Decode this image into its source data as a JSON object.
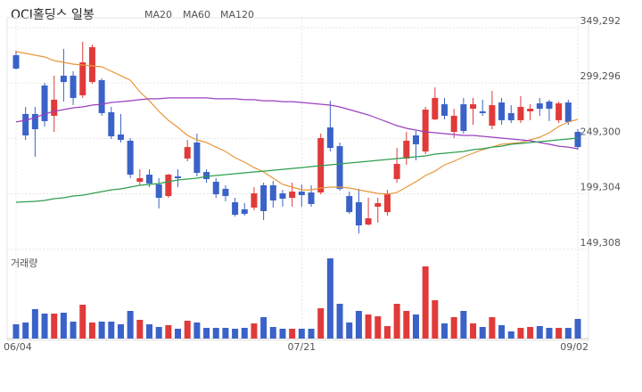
{
  "chart_data": {
    "type": "candlestick",
    "title": "OCI홀딩스 일봉",
    "categories": [
      "06/04",
      null,
      null,
      null,
      null,
      null,
      null,
      null,
      null,
      null,
      null,
      null,
      null,
      null,
      null,
      null,
      null,
      null,
      null,
      null,
      null,
      null,
      null,
      null,
      null,
      null,
      null,
      null,
      null,
      null,
      "07/21",
      null,
      null,
      null,
      null,
      null,
      null,
      null,
      null,
      null,
      null,
      null,
      null,
      null,
      null,
      null,
      null,
      null,
      null,
      null,
      null,
      null,
      null,
      null,
      null,
      null,
      null,
      null,
      null,
      "09/02"
    ],
    "open": [
      324400,
      271300,
      271300,
      297000,
      269700,
      305900,
      305900,
      288200,
      300200,
      301800,
      272900,
      252800,
      247200,
      210200,
      216600,
      207800,
      197300,
      215000,
      231100,
      245600,
      219000,
      210200,
      203800,
      191700,
      185300,
      186900,
      207000,
      207000,
      199700,
      195700,
      201300,
      200500,
      200500,
      259200,
      242300,
      197300,
      191700,
      171600,
      187700,
      182800,
      212600,
      231100,
      252000,
      237500,
      266500,
      280100,
      255200,
      280100,
      276100,
      273700,
      260800,
      281700,
      272100,
      265700,
      273700,
      280900,
      282500,
      265700,
      281700,
      255200
    ],
    "high": [
      328400,
      277700,
      277700,
      299400,
      305900,
      330000,
      309900,
      336400,
      334000,
      303400,
      277700,
      271300,
      249600,
      221400,
      221400,
      213400,
      217400,
      221400,
      248000,
      253600,
      221400,
      213400,
      207000,
      195700,
      190900,
      205400,
      209400,
      211000,
      202900,
      209400,
      207800,
      207000,
      253600,
      283300,
      245600,
      201300,
      203800,
      195700,
      195700,
      202900,
      240700,
      255200,
      256000,
      277700,
      295400,
      285800,
      276100,
      285800,
      285800,
      284200,
      292200,
      285800,
      279300,
      287400,
      280100,
      285800,
      284200,
      282500,
      284200,
      257600
    ],
    "low": [
      311500,
      248000,
      232700,
      260000,
      255200,
      282500,
      279300,
      285800,
      298600,
      269700,
      248800,
      245600,
      213400,
      207000,
      205400,
      186100,
      195700,
      205400,
      228700,
      215000,
      209400,
      195700,
      192500,
      178800,
      179600,
      184500,
      175600,
      186900,
      187700,
      187700,
      187700,
      187700,
      198900,
      237500,
      202100,
      181200,
      163600,
      170800,
      173200,
      179600,
      209400,
      225500,
      229500,
      235100,
      265700,
      266500,
      249600,
      253600,
      261600,
      269700,
      257600,
      261600,
      263200,
      263200,
      265700,
      269700,
      264900,
      263200,
      261600,
      239100
    ],
    "close": [
      312300,
      252000,
      257600,
      264900,
      284200,
      300200,
      285800,
      317900,
      331600,
      272100,
      251200,
      248000,
      216600,
      213400,
      208600,
      195700,
      216600,
      213400,
      241500,
      218200,
      212600,
      198900,
      197300,
      180400,
      181200,
      199700,
      183700,
      193300,
      194900,
      201300,
      198100,
      190100,
      249600,
      240700,
      203800,
      182800,
      170800,
      177200,
      190900,
      199700,
      226300,
      247200,
      244000,
      275300,
      285800,
      269700,
      269700,
      256000,
      280100,
      272100,
      279300,
      265700,
      265700,
      277700,
      276100,
      276100,
      276100,
      280900,
      264100,
      241500
    ],
    "up_color": "#e03a3a",
    "down_color": "#3a62c8",
    "moving_averages": [
      {
        "name": "MA20",
        "color": "#e8963a",
        "values": [
          327600,
          326000,
          324400,
          322700,
          319500,
          317900,
          316300,
          315500,
          314700,
          313900,
          309900,
          305900,
          301800,
          291400,
          283300,
          273700,
          265700,
          259200,
          252000,
          248000,
          245600,
          241500,
          237500,
          231900,
          227900,
          223000,
          219000,
          213400,
          207800,
          205400,
          202900,
          202900,
          204600,
          205400,
          205400,
          204600,
          202900,
          201300,
          199700,
          198900,
          200500,
          205400,
          210200,
          215800,
          219800,
          225500,
          228700,
          232700,
          235900,
          239100,
          241500,
          244000,
          244800,
          245600,
          248000,
          250400,
          254400,
          260000,
          264100,
          266500
        ]
      },
      {
        "name": "MA60",
        "color": "#9b3fbf",
        "values": [
          264100,
          265700,
          268100,
          271300,
          273700,
          275300,
          276900,
          277700,
          279300,
          280100,
          281700,
          282500,
          283300,
          284200,
          285000,
          285000,
          285800,
          285800,
          285800,
          285800,
          285800,
          285000,
          285000,
          285000,
          284200,
          284200,
          283300,
          283300,
          282500,
          282500,
          281700,
          280900,
          280100,
          279300,
          277700,
          275300,
          272900,
          270500,
          267300,
          264100,
          260800,
          258400,
          256800,
          255200,
          254400,
          253600,
          252800,
          252000,
          252000,
          251200,
          250400,
          249600,
          248800,
          248000,
          247200,
          245600,
          244000,
          242300,
          241500,
          239900
        ]
      },
      {
        "name": "MA120",
        "color": "#2e9e4f",
        "values": [
          191700,
          192100,
          192500,
          193300,
          194900,
          195700,
          197300,
          198100,
          199700,
          201300,
          202900,
          203800,
          205400,
          207000,
          207800,
          208600,
          210200,
          211800,
          212600,
          213400,
          215000,
          215800,
          216600,
          217400,
          218200,
          219000,
          219800,
          220600,
          221400,
          222200,
          223000,
          223900,
          224700,
          225500,
          226300,
          227100,
          227900,
          228700,
          229500,
          230300,
          231100,
          231900,
          232700,
          233500,
          235100,
          235900,
          236700,
          237500,
          239100,
          239900,
          241500,
          242300,
          244000,
          244800,
          245600,
          246400,
          247200,
          248000,
          248800,
          249600
        ]
      }
    ],
    "volume": {
      "label": "거래량",
      "values": [
        16,
        18,
        33,
        28,
        28,
        29,
        19,
        38,
        18,
        19,
        19,
        16,
        31,
        21,
        16,
        13,
        15,
        11,
        20,
        18,
        12,
        12,
        12,
        11,
        12,
        17,
        24,
        13,
        11,
        11,
        11,
        11,
        34,
        90,
        39,
        18,
        31,
        27,
        25,
        14,
        39,
        31,
        27,
        81,
        43,
        17,
        24,
        31,
        17,
        13,
        24,
        15,
        8,
        12,
        13,
        14,
        12,
        12,
        12,
        22
      ]
    },
    "ylim": [
      147500,
      358100
    ],
    "yticks": [
      {
        "value": 349292,
        "label": "349,292"
      },
      {
        "value": 299296,
        "label": "299,296"
      },
      {
        "value": 249300,
        "label": "249,300"
      },
      {
        "value": 199304,
        "label": "199,304"
      },
      {
        "value": 149308,
        "label": "149,308"
      }
    ],
    "grid": true
  }
}
